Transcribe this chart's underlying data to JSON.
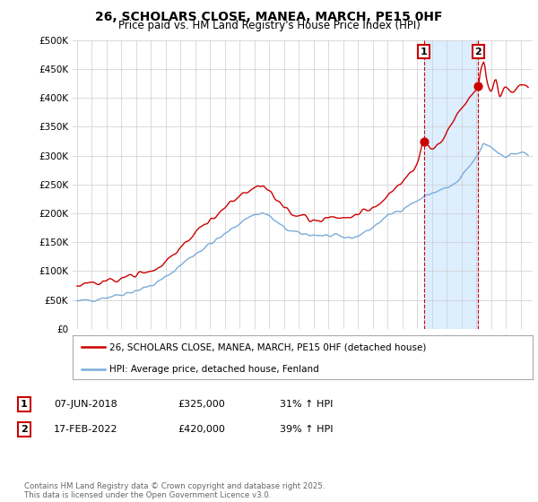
{
  "title": "26, SCHOLARS CLOSE, MANEA, MARCH, PE15 0HF",
  "subtitle": "Price paid vs. HM Land Registry's House Price Index (HPI)",
  "ylim": [
    0,
    500000
  ],
  "yticks": [
    0,
    50000,
    100000,
    150000,
    200000,
    250000,
    300000,
    350000,
    400000,
    450000,
    500000
  ],
  "ytick_labels": [
    "£0",
    "£50K",
    "£100K",
    "£150K",
    "£200K",
    "£250K",
    "£300K",
    "£350K",
    "£400K",
    "£450K",
    "£500K"
  ],
  "property_color": "#cc0000",
  "hpi_color": "#7aacdb",
  "shade_color": "#ddeeff",
  "annotation1_date": 2018.44,
  "annotation1_value": 325000,
  "annotation2_date": 2022.12,
  "annotation2_value": 420000,
  "legend_property": "26, SCHOLARS CLOSE, MANEA, MARCH, PE15 0HF (detached house)",
  "legend_hpi": "HPI: Average price, detached house, Fenland",
  "table_row1": [
    "1",
    "07-JUN-2018",
    "£325,000",
    "31% ↑ HPI"
  ],
  "table_row2": [
    "2",
    "17-FEB-2022",
    "£420,000",
    "39% ↑ HPI"
  ],
  "footer": "Contains HM Land Registry data © Crown copyright and database right 2025.\nThis data is licensed under the Open Government Licence v3.0.",
  "background_color": "#ffffff",
  "grid_color": "#cccccc"
}
